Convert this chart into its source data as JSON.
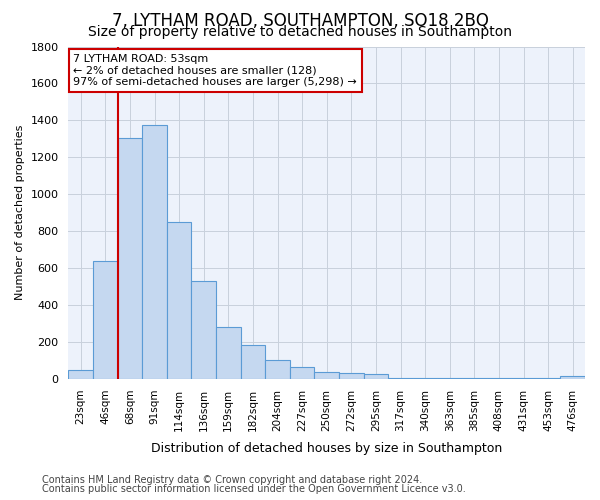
{
  "title1": "7, LYTHAM ROAD, SOUTHAMPTON, SO18 2BQ",
  "title2": "Size of property relative to detached houses in Southampton",
  "xlabel": "Distribution of detached houses by size in Southampton",
  "ylabel": "Number of detached properties",
  "annotation_title": "7 LYTHAM ROAD: 53sqm",
  "annotation_line1": "← 2% of detached houses are smaller (128)",
  "annotation_line2": "97% of semi-detached houses are larger (5,298) →",
  "footer1": "Contains HM Land Registry data © Crown copyright and database right 2024.",
  "footer2": "Contains public sector information licensed under the Open Government Licence v3.0.",
  "bar_labels": [
    "23sqm",
    "46sqm",
    "68sqm",
    "91sqm",
    "114sqm",
    "136sqm",
    "159sqm",
    "182sqm",
    "204sqm",
    "227sqm",
    "250sqm",
    "272sqm",
    "295sqm",
    "317sqm",
    "340sqm",
    "363sqm",
    "385sqm",
    "408sqm",
    "431sqm",
    "453sqm",
    "476sqm"
  ],
  "bar_values": [
    50,
    640,
    1305,
    1375,
    850,
    530,
    280,
    185,
    105,
    65,
    40,
    30,
    25,
    5,
    5,
    5,
    5,
    5,
    5,
    5,
    15
  ],
  "bar_color": "#c5d8f0",
  "bar_edge_color": "#5b9bd5",
  "vline_color": "#cc0000",
  "annotation_box_color": "#cc0000",
  "ylim": [
    0,
    1800
  ],
  "yticks": [
    0,
    200,
    400,
    600,
    800,
    1000,
    1200,
    1400,
    1600,
    1800
  ],
  "bg_color": "#edf2fb",
  "grid_color": "#c8d0dc",
  "title1_fontsize": 12,
  "title2_fontsize": 10,
  "footer_fontsize": 7
}
